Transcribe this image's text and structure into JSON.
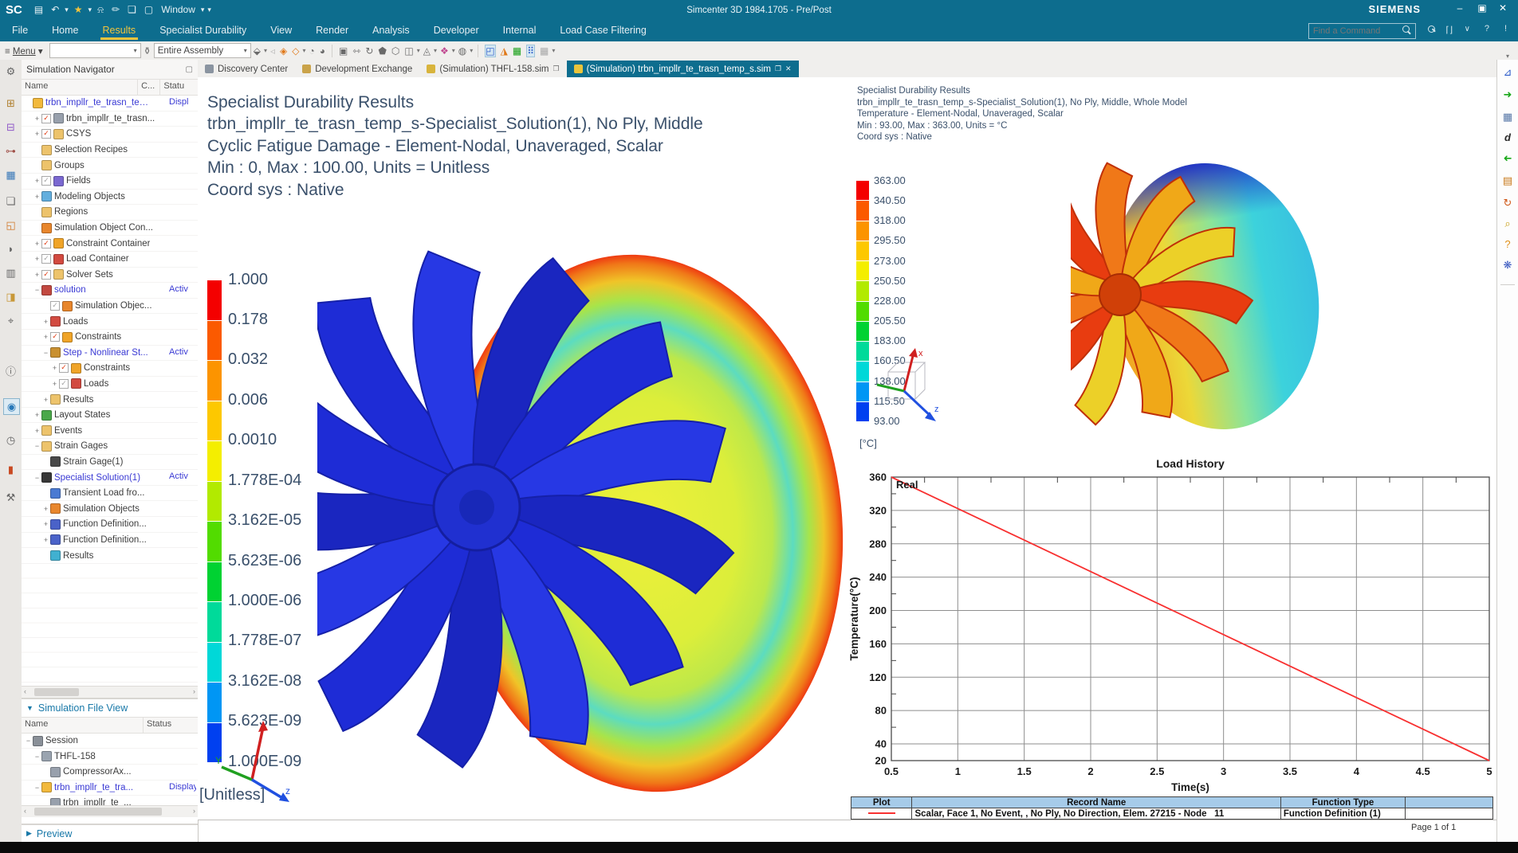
{
  "titlebar": {
    "app_title": "Simcenter 3D 1984.1705 - Pre/Post",
    "brand": "SIEMENS",
    "window_menu_label": "Window"
  },
  "ribbon": {
    "tabs": [
      {
        "label": "File",
        "active": false
      },
      {
        "label": "Home",
        "active": false
      },
      {
        "label": "Results",
        "active": true
      },
      {
        "label": "Specialist Durability",
        "active": false
      },
      {
        "label": "View",
        "active": false
      },
      {
        "label": "Render",
        "active": false
      },
      {
        "label": "Analysis",
        "active": false
      },
      {
        "label": "Developer",
        "active": false
      },
      {
        "label": "Internal",
        "active": false
      },
      {
        "label": "Load Case Filtering",
        "active": false
      }
    ],
    "find_placeholder": "Find a Command"
  },
  "toolbar": {
    "menu_label": "Menu",
    "scope_value": "Entire Assembly"
  },
  "doc_tabs": [
    {
      "label": "Discovery Center",
      "active": false,
      "pin": false,
      "close": false,
      "icon_color": "#8a94a0"
    },
    {
      "label": "Development Exchange",
      "active": false,
      "pin": false,
      "close": false,
      "icon_color": "#caa34a"
    },
    {
      "label": "(Simulation) THFL-158.sim",
      "active": false,
      "pin": true,
      "close": false,
      "icon_color": "#d8b43c"
    },
    {
      "label": "(Simulation) trbn_impllr_te_trasn_temp_s.sim",
      "active": true,
      "pin": true,
      "close": true,
      "icon_color": "#e8c43c"
    }
  ],
  "navigator": {
    "title": "Simulation Navigator",
    "columns": [
      "Name",
      "C...",
      "Statu"
    ],
    "rows": [
      {
        "level": 0,
        "expander": "",
        "check": "",
        "icon": "sim-root",
        "label": "trbn_impllr_te_trasn_tem...",
        "blue": true,
        "status": "Displ"
      },
      {
        "level": 1,
        "expander": "+",
        "check": "r",
        "icon": "mesh",
        "label": "trbn_impllr_te_trasn...",
        "blue": false,
        "status": ""
      },
      {
        "level": 1,
        "expander": "+",
        "check": "r",
        "icon": "csys",
        "label": "CSYS",
        "blue": false,
        "status": ""
      },
      {
        "level": 1,
        "expander": "",
        "check": "",
        "icon": "folder",
        "label": "Selection Recipes",
        "blue": false,
        "status": ""
      },
      {
        "level": 1,
        "expander": "",
        "check": "",
        "icon": "folder",
        "label": "Groups",
        "blue": false,
        "status": ""
      },
      {
        "level": 1,
        "expander": "+",
        "check": "g",
        "icon": "fields",
        "label": "Fields",
        "blue": false,
        "status": ""
      },
      {
        "level": 1,
        "expander": "+",
        "check": "",
        "icon": "modeling",
        "label": "Modeling Objects",
        "blue": false,
        "status": ""
      },
      {
        "level": 1,
        "expander": "",
        "check": "",
        "icon": "folder",
        "label": "Regions",
        "blue": false,
        "status": ""
      },
      {
        "level": 1,
        "expander": "",
        "check": "",
        "icon": "simcon",
        "label": "Simulation Object Con...",
        "blue": false,
        "status": ""
      },
      {
        "level": 1,
        "expander": "+",
        "check": "r",
        "icon": "constraint",
        "label": "Constraint Container",
        "blue": false,
        "status": ""
      },
      {
        "level": 1,
        "expander": "+",
        "check": "g",
        "icon": "load",
        "label": "Load Container",
        "blue": false,
        "status": ""
      },
      {
        "level": 1,
        "expander": "+",
        "check": "r",
        "icon": "folder",
        "label": "Solver Sets",
        "blue": false,
        "status": ""
      },
      {
        "level": 1,
        "expander": "-",
        "check": "",
        "icon": "solution",
        "label": "solution",
        "blue": true,
        "status": "Activ"
      },
      {
        "level": 2,
        "expander": "",
        "check": "g",
        "icon": "simcon",
        "label": "Simulation Objec...",
        "blue": false,
        "status": ""
      },
      {
        "level": 2,
        "expander": "+",
        "check": "",
        "icon": "load",
        "label": "Loads",
        "blue": false,
        "status": ""
      },
      {
        "level": 2,
        "expander": "+",
        "check": "r",
        "icon": "constraint",
        "label": "Constraints",
        "blue": false,
        "status": ""
      },
      {
        "level": 2,
        "expander": "-",
        "check": "",
        "icon": "step",
        "label": "Step - Nonlinear St...",
        "blue": true,
        "status": "Activ"
      },
      {
        "level": 3,
        "expander": "+",
        "check": "r",
        "icon": "constraint",
        "label": "Constraints",
        "blue": false,
        "status": ""
      },
      {
        "level": 3,
        "expander": "+",
        "check": "g",
        "icon": "load",
        "label": "Loads",
        "blue": false,
        "status": ""
      },
      {
        "level": 2,
        "expander": "+",
        "check": "",
        "icon": "folder",
        "label": "Results",
        "blue": false,
        "status": ""
      },
      {
        "level": 1,
        "expander": "+",
        "check": "",
        "icon": "layout",
        "label": "Layout States",
        "blue": false,
        "status": ""
      },
      {
        "level": 1,
        "expander": "+",
        "check": "",
        "icon": "folder",
        "label": "Events",
        "blue": false,
        "status": ""
      },
      {
        "level": 1,
        "expander": "-",
        "check": "",
        "icon": "folder",
        "label": "Strain Gages",
        "blue": false,
        "status": ""
      },
      {
        "level": 2,
        "expander": "",
        "check": "",
        "icon": "gage",
        "label": "Strain Gage(1)",
        "blue": false,
        "status": ""
      },
      {
        "level": 1,
        "expander": "-",
        "check": "",
        "icon": "specialist",
        "label": "Specialist Solution(1)",
        "blue": true,
        "status": "Activ"
      },
      {
        "level": 2,
        "expander": "",
        "check": "",
        "icon": "transient",
        "label": "Transient Load fro...",
        "blue": false,
        "status": ""
      },
      {
        "level": 2,
        "expander": "+",
        "check": "",
        "icon": "simcon",
        "label": "Simulation Objects",
        "blue": false,
        "status": ""
      },
      {
        "level": 2,
        "expander": "+",
        "check": "",
        "icon": "funcdef",
        "label": "Function Definition...",
        "blue": false,
        "status": ""
      },
      {
        "level": 2,
        "expander": "+",
        "check": "",
        "icon": "funcdef",
        "label": "Function Definition...",
        "blue": false,
        "status": ""
      },
      {
        "level": 2,
        "expander": "",
        "check": "",
        "icon": "resobj",
        "label": "Results",
        "blue": false,
        "status": ""
      }
    ]
  },
  "file_view": {
    "title": "Simulation File View",
    "columns": [
      "Name",
      "Status"
    ],
    "rows": [
      {
        "level": 0,
        "expander": "-",
        "icon": "session",
        "label": "Session",
        "blue": false,
        "status": ""
      },
      {
        "level": 1,
        "expander": "-",
        "icon": "simfile",
        "label": "THFL-158",
        "blue": false,
        "status": ""
      },
      {
        "level": 2,
        "expander": "",
        "icon": "mesh",
        "label": "CompressorAx...",
        "blue": false,
        "status": ""
      },
      {
        "level": 1,
        "expander": "-",
        "icon": "sim-root",
        "label": "trbn_impllr_te_tra...",
        "blue": true,
        "status": "Displaye"
      },
      {
        "level": 2,
        "expander": "",
        "icon": "mesh",
        "label": "trbn_impllr_te_...",
        "blue": false,
        "status": ""
      }
    ],
    "preview_label": "Preview"
  },
  "left_view": {
    "header_lines": [
      "Specialist Durability Results",
      "trbn_impllr_te_trasn_temp_s-Specialist_Solution(1), No Ply, Middle",
      "Cyclic Fatigue Damage - Element-Nodal, Unaveraged, Scalar",
      "Min : 0, Max : 100.00, Units = Unitless",
      "Coord sys : Native"
    ],
    "legend": {
      "values": [
        "1.000",
        "0.178",
        "0.032",
        "0.006",
        "0.0010",
        "1.778E-04",
        "3.162E-05",
        "5.623E-06",
        "1.000E-06",
        "1.778E-07",
        "3.162E-08",
        "5.623E-09",
        "1.000E-09"
      ],
      "unit": "[Unitless]"
    },
    "triad_labels": {
      "y": "Y",
      "z": "z"
    }
  },
  "right_view": {
    "header_lines": [
      "Specialist Durability Results",
      "trbn_impllr_te_trasn_temp_s-Specialist_Solution(1), No Ply, Middle, Whole Model",
      "Temperature - Element-Nodal, Unaveraged, Scalar",
      "Min : 93.00, Max : 363.00, Units = °C",
      "Coord sys : Native"
    ],
    "legend": {
      "values": [
        "363.00",
        "340.50",
        "318.00",
        "295.50",
        "273.00",
        "250.50",
        "228.00",
        "205.50",
        "183.00",
        "160.50",
        "138.00",
        "115.50",
        "93.00"
      ],
      "unit": "[°C]"
    },
    "triad_labels": {
      "x": "x",
      "z": "z"
    }
  },
  "legend_colors": [
    "#f40000",
    "#fb5a00",
    "#fc9400",
    "#fdc800",
    "#f4ee00",
    "#b2ea00",
    "#52dc00",
    "#00d232",
    "#00da9a",
    "#00d8d8",
    "#0096f4",
    "#0040f0"
  ],
  "chart_data": {
    "type": "line",
    "title": "Load History",
    "xlabel": "Time(s)",
    "ylabel": "Temperature(°C)",
    "xlim": [
      0.5,
      5
    ],
    "ylim": [
      20,
      360
    ],
    "xticks": [
      0.5,
      1,
      1.5,
      2,
      2.5,
      3,
      3.5,
      4,
      4.5,
      5
    ],
    "yticks": [
      20,
      40,
      80,
      120,
      160,
      200,
      240,
      280,
      320,
      360
    ],
    "grid": true,
    "series": [
      {
        "name": "Real",
        "color": "#f83030",
        "x": [
          0.5,
          5
        ],
        "y": [
          360,
          20
        ]
      }
    ],
    "annotation": "Real"
  },
  "record_table": {
    "headers": [
      "Plot",
      "Record Name",
      "Function Type",
      ""
    ],
    "rows": [
      {
        "record": "Scalar, Face 1, No Event, , No Ply, No Direction, Elem. 27215 - Node   11",
        "function": "Function Definition (1)"
      }
    ]
  },
  "page_label": "Page 1 of 1",
  "icon_colors": {
    "folder": "#edc36b",
    "sim-root": "#f2b93c",
    "mesh": "#98a0ac",
    "csys": "#edc36b",
    "fields": "#7a68d0",
    "modeling": "#62aede",
    "simcon": "#e8862c",
    "constraint": "#f0a428",
    "load": "#d24a40",
    "solution": "#c24840",
    "step": "#c99030",
    "layout": "#4aa84a",
    "gage": "#484848",
    "specialist": "#383838",
    "transient": "#4a7ad2",
    "funcdef": "#4a62c8",
    "resobj": "#40b0d0",
    "session": "#8a9098",
    "simfile": "#9aa4b0"
  }
}
